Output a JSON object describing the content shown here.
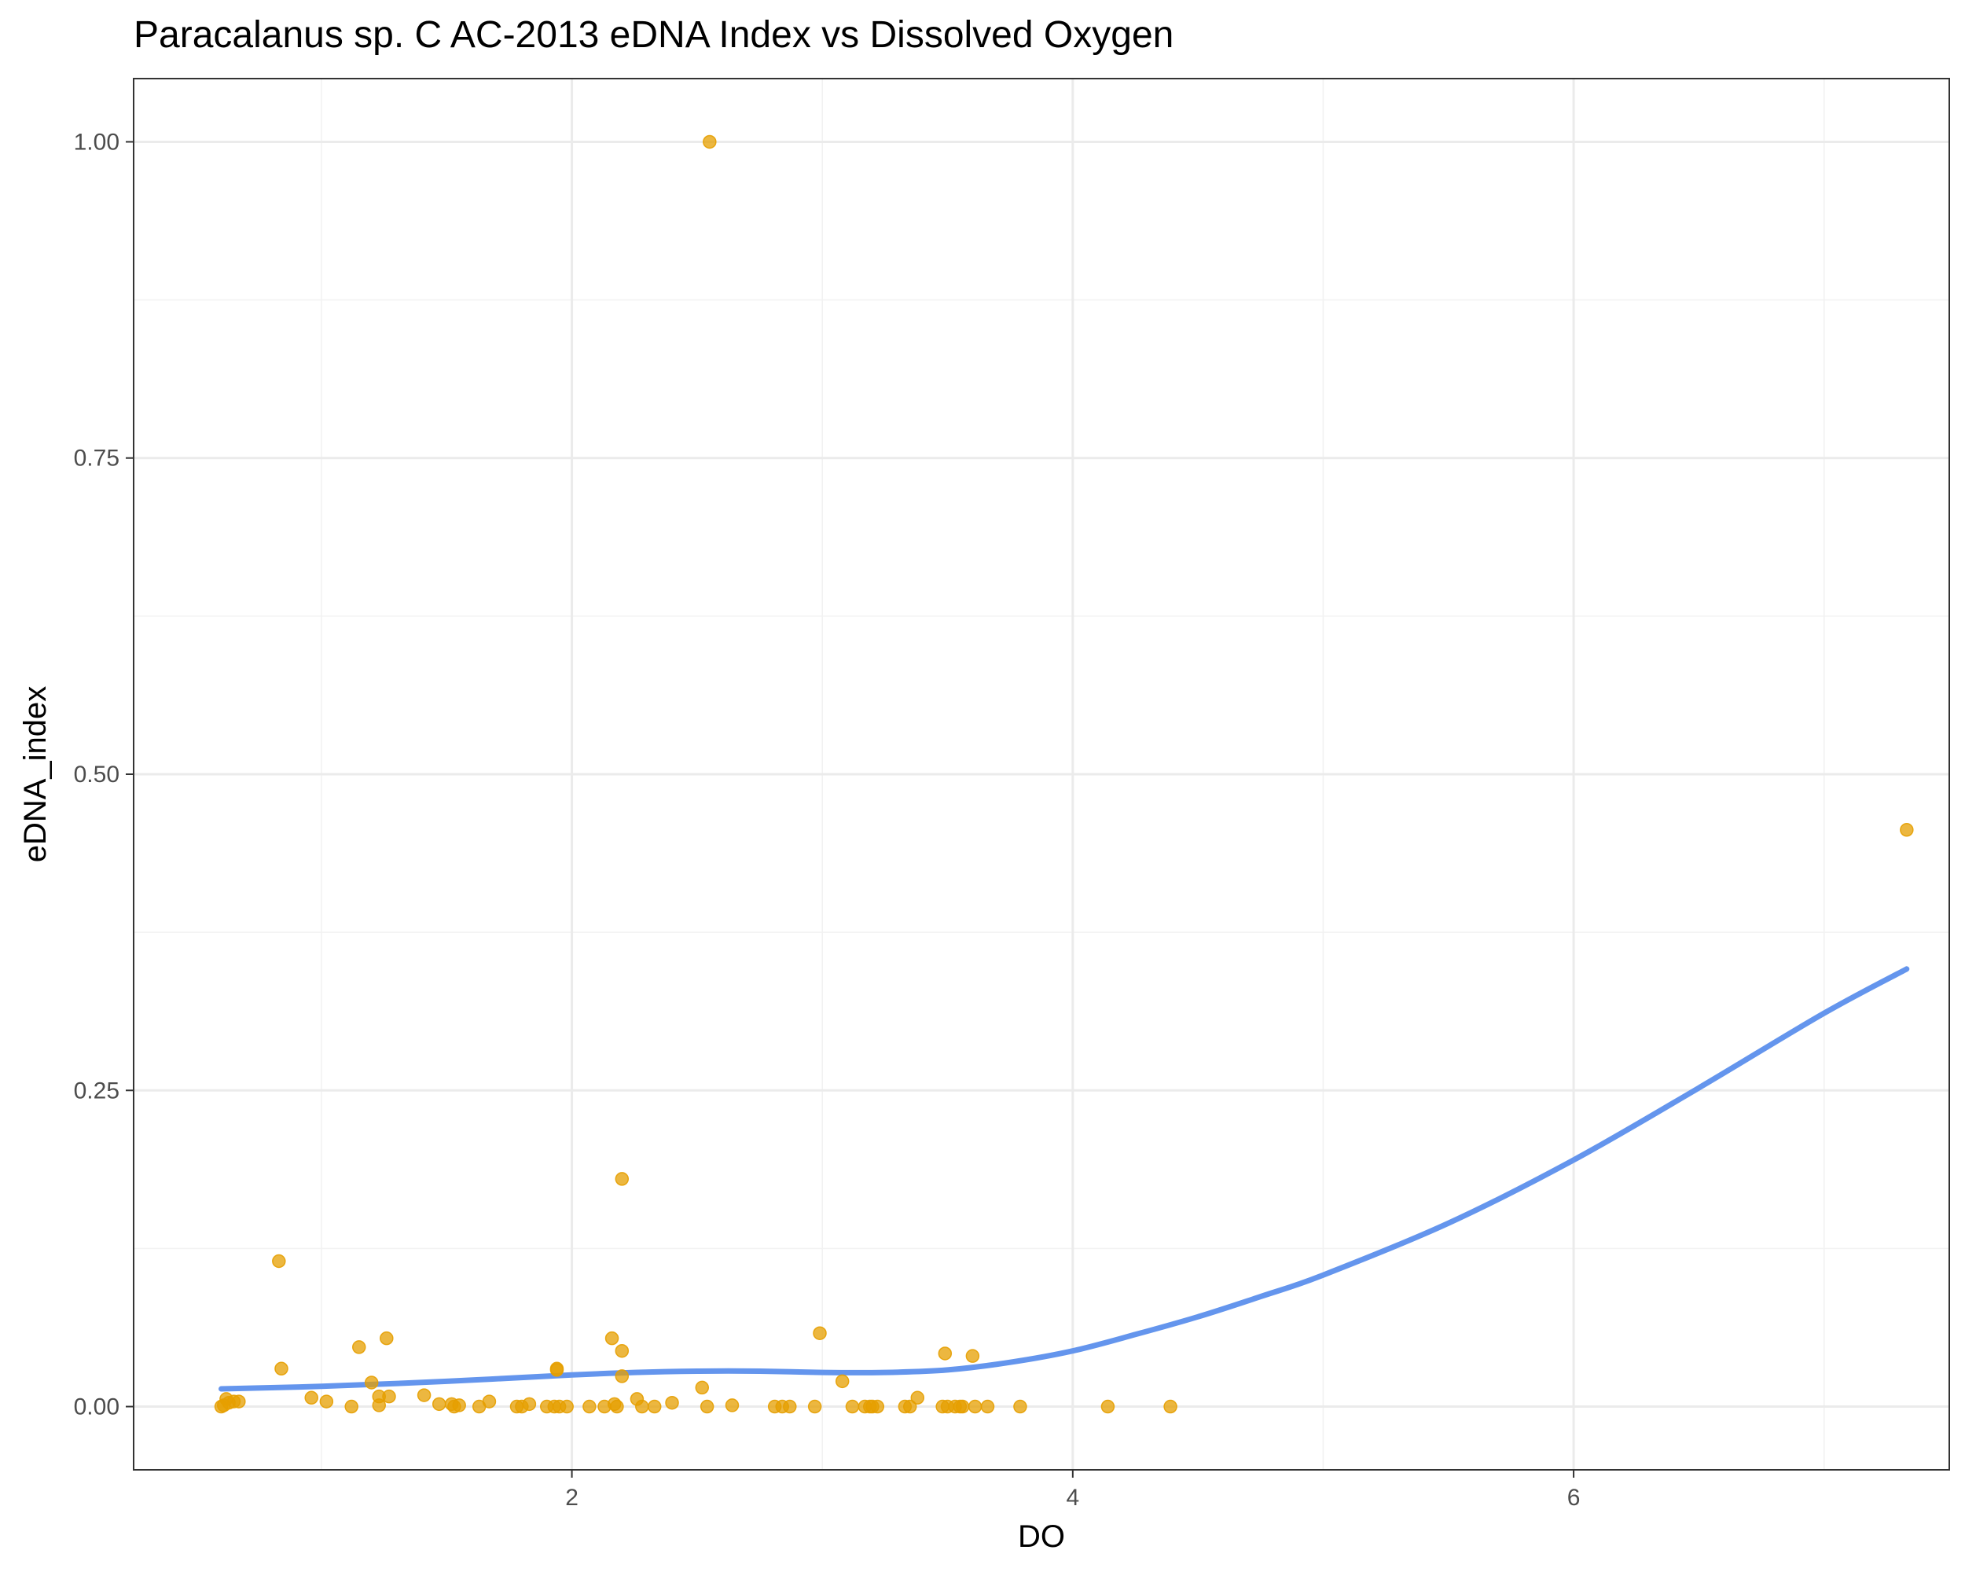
{
  "chart_data": {
    "type": "scatter",
    "title": "Paracalanus sp. C AC-2013 eDNA Index vs Dissolved Oxygen",
    "xlabel": "DO",
    "ylabel": "eDNA_index",
    "xlim": [
      0.25,
      7.5
    ],
    "ylim": [
      -0.05,
      1.05
    ],
    "x_ticks": [
      2,
      4,
      6
    ],
    "x_tick_labels": [
      "2",
      "4",
      "6"
    ],
    "x_minor_ticks": [
      1,
      3,
      5,
      7
    ],
    "y_ticks": [
      0,
      0.25,
      0.5,
      0.75,
      1.0
    ],
    "y_tick_labels": [
      "0.00",
      "0.25",
      "0.50",
      "0.75",
      "1.00"
    ],
    "y_minor_ticks": [
      0.125,
      0.375,
      0.625,
      0.875
    ],
    "grid": true,
    "legend": "none",
    "colors": {
      "points": "#E69F00",
      "smooth_line": "#6495ED"
    },
    "series": [
      {
        "kind": "points",
        "points": [
          [
            0.6,
            0.0
          ],
          [
            0.62,
            0.006
          ],
          [
            0.63,
            0.003
          ],
          [
            0.65,
            0.004
          ],
          [
            0.67,
            0.004
          ],
          [
            0.61,
            0.001
          ],
          [
            0.83,
            0.115
          ],
          [
            0.84,
            0.03
          ],
          [
            0.96,
            0.007
          ],
          [
            1.02,
            0.004
          ],
          [
            1.12,
            0.0
          ],
          [
            1.15,
            0.047
          ],
          [
            1.2,
            0.019
          ],
          [
            1.23,
            0.008
          ],
          [
            1.23,
            0.001
          ],
          [
            1.26,
            0.054
          ],
          [
            1.27,
            0.008
          ],
          [
            1.41,
            0.009
          ],
          [
            1.47,
            0.002
          ],
          [
            1.52,
            0.002
          ],
          [
            1.53,
            0.0
          ],
          [
            1.55,
            0.001
          ],
          [
            1.63,
            0.0
          ],
          [
            1.67,
            0.004
          ],
          [
            1.78,
            0.0
          ],
          [
            1.8,
            0.0
          ],
          [
            1.83,
            0.002
          ],
          [
            1.9,
            0.0
          ],
          [
            1.93,
            0.0
          ],
          [
            1.94,
            0.029
          ],
          [
            1.94,
            0.03
          ],
          [
            1.95,
            0.0
          ],
          [
            1.98,
            0.0
          ],
          [
            2.07,
            0.0
          ],
          [
            2.13,
            0.0
          ],
          [
            2.16,
            0.054
          ],
          [
            2.17,
            0.002
          ],
          [
            2.18,
            0.0
          ],
          [
            2.2,
            0.024
          ],
          [
            2.2,
            0.044
          ],
          [
            2.2,
            0.18
          ],
          [
            2.26,
            0.006
          ],
          [
            2.28,
            0.0
          ],
          [
            2.33,
            0.0
          ],
          [
            2.4,
            0.003
          ],
          [
            2.52,
            0.015
          ],
          [
            2.54,
            0.0
          ],
          [
            2.55,
            1.0
          ],
          [
            2.64,
            0.001
          ],
          [
            2.81,
            0.0
          ],
          [
            2.84,
            0.0
          ],
          [
            2.87,
            0.0
          ],
          [
            2.97,
            0.0
          ],
          [
            2.99,
            0.058
          ],
          [
            3.08,
            0.02
          ],
          [
            3.12,
            0.0
          ],
          [
            3.17,
            0.0
          ],
          [
            3.19,
            0.0
          ],
          [
            3.2,
            0.0
          ],
          [
            3.22,
            0.0
          ],
          [
            3.33,
            0.0
          ],
          [
            3.35,
            0.0
          ],
          [
            3.38,
            0.007
          ],
          [
            3.48,
            0.0
          ],
          [
            3.49,
            0.042
          ],
          [
            3.5,
            0.0
          ],
          [
            3.53,
            0.0
          ],
          [
            3.55,
            0.0
          ],
          [
            3.56,
            0.0
          ],
          [
            3.6,
            0.04
          ],
          [
            3.61,
            0.0
          ],
          [
            3.66,
            0.0
          ],
          [
            3.79,
            0.0
          ],
          [
            4.14,
            0.0
          ],
          [
            4.39,
            0.0
          ],
          [
            7.33,
            0.456
          ]
        ]
      },
      {
        "kind": "smooth",
        "points": [
          [
            0.6,
            0.014
          ],
          [
            1.0,
            0.016
          ],
          [
            1.5,
            0.02
          ],
          [
            2.0,
            0.025
          ],
          [
            2.25,
            0.027
          ],
          [
            2.5,
            0.028
          ],
          [
            2.75,
            0.028
          ],
          [
            3.0,
            0.027
          ],
          [
            3.25,
            0.027
          ],
          [
            3.5,
            0.029
          ],
          [
            3.75,
            0.035
          ],
          [
            4.0,
            0.044
          ],
          [
            4.25,
            0.057
          ],
          [
            4.5,
            0.071
          ],
          [
            4.75,
            0.087
          ],
          [
            5.0,
            0.104
          ],
          [
            5.5,
            0.145
          ],
          [
            6.0,
            0.195
          ],
          [
            6.5,
            0.252
          ],
          [
            7.0,
            0.311
          ],
          [
            7.33,
            0.346
          ]
        ]
      }
    ]
  }
}
